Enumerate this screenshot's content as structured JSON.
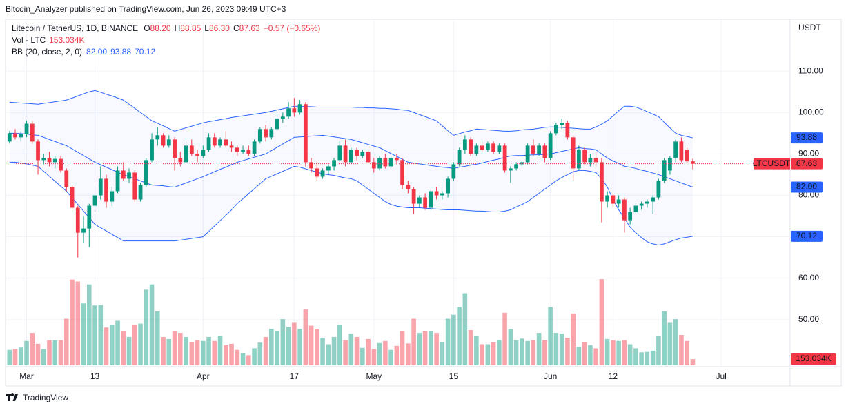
{
  "header": {
    "published": "Bitcoin_Analyzer published on TradingView.com, Jun 26, 2023 09:49 UTC+3",
    "brand": "TradingView"
  },
  "chart_data": {
    "type": "candlestick",
    "symbol": "Litecoin / TetherUS, 1D, BINANCE",
    "ohlc_legend": [
      {
        "key": "O",
        "value": "88.20"
      },
      {
        "key": "H",
        "value": "88.85"
      },
      {
        "key": "L",
        "value": "86.30"
      },
      {
        "key": "C",
        "value": "87.63"
      }
    ],
    "change": "−0.57 (−0.65%)",
    "volume_legend": {
      "name": "Vol · LTC",
      "value": "153.034K"
    },
    "bb_legend": {
      "name": "BB (20, close, 2, 0)",
      "values": [
        "82.00",
        "93.88",
        "70.12"
      ]
    },
    "currency": "USDT",
    "symbol_badge": "LTCUSDT",
    "last_labels": {
      "upper": "93.88",
      "close": "87.63",
      "middle": "82.00",
      "lower": "70.12",
      "volume": "153.034K"
    },
    "up_color": "#089981",
    "down_color": "#f23645",
    "band_color": "#2962ff",
    "xlim": [
      -0.7,
      137.1
    ],
    "xticks": [
      {
        "value": 3,
        "label": "Mar"
      },
      {
        "value": 15,
        "label": "13"
      },
      {
        "value": 34,
        "label": "Apr"
      },
      {
        "value": 50,
        "label": "17"
      },
      {
        "value": 64,
        "label": "May"
      },
      {
        "value": 78,
        "label": "15"
      },
      {
        "value": 95,
        "label": "Jun"
      },
      {
        "value": 106,
        "label": "12"
      },
      {
        "value": 125,
        "label": "Jul"
      }
    ],
    "ylim": [
      39,
      122.5
    ],
    "yticks": [
      {
        "value": 110,
        "label": "110.00"
      },
      {
        "value": 100,
        "label": "100.00"
      },
      {
        "value": 90,
        "label": "90.00"
      },
      {
        "value": 80,
        "label": "80.00"
      },
      {
        "value": 70,
        "label": "70.00"
      },
      {
        "value": 60,
        "label": "60.00"
      },
      {
        "value": 50,
        "label": "50.00"
      }
    ],
    "volume_ylim": [
      0,
      2200
    ],
    "candles": [
      [
        93,
        95.5,
        92.5,
        95
      ],
      [
        95,
        96,
        93.5,
        94
      ],
      [
        94,
        95.5,
        93,
        94.8
      ],
      [
        94.8,
        98,
        94,
        97.3
      ],
      [
        97.3,
        98,
        92.5,
        93
      ],
      [
        93,
        93.5,
        85,
        88.5
      ],
      [
        88.5,
        90,
        87.5,
        89
      ],
      [
        89,
        90.5,
        87,
        88
      ],
      [
        88,
        89.5,
        86.5,
        88.8
      ],
      [
        88.8,
        89.5,
        85.5,
        86
      ],
      [
        86,
        86.5,
        81,
        82
      ],
      [
        82,
        82.5,
        76,
        77
      ],
      [
        77,
        77.5,
        65,
        71
      ],
      [
        71,
        75,
        68.5,
        72
      ],
      [
        72,
        78,
        67.5,
        77.5
      ],
      [
        77.5,
        82,
        76,
        80
      ],
      [
        80,
        87,
        79,
        84
      ],
      [
        84,
        85,
        77,
        78.5
      ],
      [
        78.5,
        82,
        77.5,
        81
      ],
      [
        81,
        87,
        80.5,
        86
      ],
      [
        86,
        88,
        83.5,
        84
      ],
      [
        84,
        86.5,
        83,
        85.5
      ],
      [
        85.5,
        86,
        78.5,
        79
      ],
      [
        79,
        83,
        78.5,
        82.5
      ],
      [
        82.5,
        89,
        82,
        88.5
      ],
      [
        88.5,
        95,
        88,
        93.5
      ],
      [
        93.5,
        96.5,
        92,
        94.5
      ],
      [
        94.5,
        95,
        91.5,
        92
      ],
      [
        92,
        94.5,
        91.5,
        93.5
      ],
      [
        93.5,
        94,
        86,
        89
      ],
      [
        89,
        90.5,
        87,
        88
      ],
      [
        88,
        93,
        87.5,
        92
      ],
      [
        92,
        93.5,
        89.5,
        90
      ],
      [
        90,
        91,
        88,
        89.5
      ],
      [
        89.5,
        92,
        89,
        91
      ],
      [
        91,
        95,
        90.5,
        94
      ],
      [
        94,
        95,
        91.5,
        92
      ],
      [
        92,
        94,
        91.5,
        93.5
      ],
      [
        93.5,
        95.5,
        91.5,
        92
      ],
      [
        92,
        93,
        90.5,
        91.5
      ],
      [
        91.5,
        92,
        89.5,
        90.5
      ],
      [
        90.5,
        92,
        90,
        91
      ],
      [
        91,
        92,
        89.5,
        90
      ],
      [
        90,
        93.5,
        89.5,
        93
      ],
      [
        93,
        96.5,
        92.5,
        96
      ],
      [
        96,
        97,
        93,
        94
      ],
      [
        94,
        96.5,
        93.5,
        96
      ],
      [
        96,
        99.5,
        95.5,
        98.5
      ],
      [
        98.5,
        100,
        97.5,
        99
      ],
      [
        99,
        102.5,
        98.5,
        101
      ],
      [
        101,
        103.5,
        99,
        100
      ],
      [
        100,
        103,
        99.5,
        102
      ],
      [
        102,
        102.5,
        87,
        88
      ],
      [
        88,
        89,
        85.5,
        86.5
      ],
      [
        86.5,
        88,
        83.5,
        84.5
      ],
      [
        84.5,
        86.5,
        84,
        86
      ],
      [
        86,
        87.5,
        85,
        87
      ],
      [
        87,
        89,
        86,
        88.5
      ],
      [
        88.5,
        93,
        88,
        92
      ],
      [
        92,
        93.5,
        87,
        88
      ],
      [
        88,
        91.5,
        87.5,
        91
      ],
      [
        91,
        91.5,
        88.5,
        89.5
      ],
      [
        89.5,
        91,
        89,
        90.5
      ],
      [
        90.5,
        91,
        87.5,
        88
      ],
      [
        88,
        89,
        85.5,
        86.5
      ],
      [
        86.5,
        89.5,
        86,
        89
      ],
      [
        89,
        90,
        86.5,
        87
      ],
      [
        87,
        89.5,
        86.5,
        89
      ],
      [
        89,
        90,
        87.5,
        88.5
      ],
      [
        88.5,
        89,
        81.5,
        82.5
      ],
      [
        82.5,
        83.5,
        80.5,
        81.5
      ],
      [
        81.5,
        82,
        75.5,
        78
      ],
      [
        78,
        80,
        77,
        79.5
      ],
      [
        79.5,
        80.5,
        76.5,
        77
      ],
      [
        77,
        81.5,
        76.5,
        81
      ],
      [
        81,
        82,
        79,
        80
      ],
      [
        80,
        81,
        79,
        80.5
      ],
      [
        80.5,
        84.5,
        79.5,
        84
      ],
      [
        84,
        88,
        83.5,
        87.5
      ],
      [
        87.5,
        91.5,
        87,
        91
      ],
      [
        91,
        94.5,
        90,
        93.5
      ],
      [
        93.5,
        94,
        89.5,
        90
      ],
      [
        90,
        92.5,
        89.5,
        92
      ],
      [
        92,
        93,
        90.5,
        91
      ],
      [
        91,
        93,
        90.5,
        92.5
      ],
      [
        92.5,
        93,
        90,
        90.5
      ],
      [
        90.5,
        92.5,
        90,
        92
      ],
      [
        92,
        92.5,
        85.5,
        86
      ],
      [
        86,
        87,
        83,
        86.5
      ],
      [
        86.5,
        88,
        86,
        87.5
      ],
      [
        87.5,
        88.5,
        87,
        88
      ],
      [
        88,
        92.5,
        87.5,
        92
      ],
      [
        92,
        93.5,
        89.5,
        90
      ],
      [
        90,
        92.5,
        89.5,
        92
      ],
      [
        92,
        92.5,
        88,
        89
      ],
      [
        89,
        95.5,
        88.5,
        95
      ],
      [
        95,
        97.5,
        94.5,
        97
      ],
      [
        97,
        98.5,
        96,
        97.5
      ],
      [
        97.5,
        98,
        93.5,
        94
      ],
      [
        94,
        94.5,
        83.5,
        86.5
      ],
      [
        86.5,
        92,
        86,
        91
      ],
      [
        91,
        91.5,
        87.5,
        88
      ],
      [
        88,
        90,
        87,
        89
      ],
      [
        89,
        90.5,
        87,
        88
      ],
      [
        88,
        89,
        73.5,
        78.5
      ],
      [
        78.5,
        81,
        77,
        80
      ],
      [
        80,
        80.5,
        77,
        78
      ],
      [
        78,
        80,
        77,
        79
      ],
      [
        79,
        79.5,
        71,
        74
      ],
      [
        74,
        77,
        73,
        76
      ],
      [
        76,
        78,
        75.5,
        77.5
      ],
      [
        77.5,
        78.5,
        76.5,
        78
      ],
      [
        78,
        79,
        77,
        78.5
      ],
      [
        78.5,
        80,
        75.5,
        79.5
      ],
      [
        79.5,
        84,
        79,
        83.5
      ],
      [
        83.5,
        89,
        83,
        88.5
      ],
      [
        86,
        89.5,
        85,
        89
      ],
      [
        89,
        93.5,
        88,
        93
      ],
      [
        93,
        94,
        88,
        88.5
      ],
      [
        91,
        91.5,
        87.5,
        88.2
      ],
      [
        88.2,
        88.85,
        86.3,
        87.63
      ]
    ],
    "volume": [
      380,
      400,
      440,
      600,
      800,
      530,
      400,
      620,
      620,
      620,
      1150,
      2120,
      2070,
      1530,
      2000,
      1480,
      1490,
      935,
      1000,
      1100,
      850,
      700,
      1000,
      1030,
      1870,
      2000,
      1330,
      700,
      650,
      850,
      800,
      700,
      580,
      620,
      600,
      700,
      600,
      720,
      500,
      530,
      380,
      300,
      250,
      420,
      560,
      700,
      900,
      850,
      1140,
      950,
      1050,
      900,
      1380,
      980,
      900,
      680,
      520,
      700,
      1000,
      620,
      780,
      700,
      430,
      650,
      400,
      550,
      600,
      380,
      480,
      850,
      540,
      1150,
      800,
      850,
      850,
      800,
      580,
      1150,
      1250,
      1440,
      1780,
      870,
      720,
      520,
      520,
      570,
      630,
      1300,
      900,
      620,
      660,
      600,
      620,
      800,
      620,
      1440,
      800,
      780,
      680,
      1280,
      460,
      580,
      500,
      420,
      2130,
      650,
      620,
      600,
      620,
      520,
      420,
      320,
      330,
      360,
      720,
      1330,
      1050,
      1140,
      750,
      600,
      153.034
    ],
    "bb": {
      "upper": [
        102.5,
        102.4,
        102.3,
        102.2,
        102.1,
        102.0,
        102.2,
        102.4,
        102.6,
        102.8,
        103.0,
        103.5,
        104.0,
        104.5,
        105.0,
        105.3,
        104.9,
        104.4,
        104.0,
        103.5,
        103.0,
        102.0,
        101.0,
        100.0,
        99.0,
        98.0,
        97.4,
        96.8,
        96.1,
        95.5,
        95.9,
        96.3,
        96.7,
        97.1,
        97.5,
        97.8,
        98.0,
        98.3,
        98.5,
        98.8,
        99.0,
        99.2,
        99.4,
        99.6,
        99.8,
        100.0,
        100.3,
        100.6,
        100.9,
        101.2,
        101.5,
        101.5,
        101.4,
        101.4,
        101.3,
        101.3,
        101.3,
        101.3,
        101.3,
        101.3,
        101.3,
        101.2,
        101.2,
        101.1,
        101.1,
        101.0,
        101.0,
        100.9,
        100.8,
        100.6,
        100.5,
        100.0,
        99.5,
        99.0,
        98.5,
        98.0,
        96.8,
        95.6,
        94.5,
        94.9,
        95.3,
        95.6,
        96.0,
        95.9,
        95.8,
        95.7,
        95.6,
        95.5,
        95.5,
        95.6,
        95.8,
        95.9,
        96.0,
        96.2,
        96.4,
        96.5,
        96.5,
        96.4,
        96.3,
        96.2,
        96.1,
        96.0,
        96.0,
        96.5,
        97.2,
        98.0,
        99.2,
        100.4,
        101.5,
        101.5,
        101.3,
        100.8,
        100.2,
        99.6,
        99.0,
        97.6,
        96.3,
        95.0,
        94.5,
        94.2,
        93.88
      ],
      "middle": [
        95.0,
        95.0,
        94.9,
        94.8,
        94.6,
        94.5,
        94.0,
        93.5,
        93.0,
        92.5,
        92.0,
        91.2,
        90.4,
        89.6,
        88.8,
        88.0,
        87.4,
        86.8,
        86.2,
        85.6,
        85.0,
        84.5,
        84.0,
        83.5,
        83.0,
        82.5,
        82.4,
        82.3,
        82.1,
        82.0,
        82.5,
        83.0,
        83.5,
        84.0,
        84.5,
        85.1,
        85.7,
        86.3,
        86.8,
        87.4,
        88.0,
        88.4,
        88.8,
        89.2,
        89.6,
        90.0,
        90.8,
        91.6,
        92.4,
        93.2,
        94.0,
        94.1,
        94.2,
        94.3,
        94.4,
        94.5,
        94.3,
        94.1,
        93.9,
        93.7,
        93.5,
        93.1,
        92.7,
        92.3,
        91.9,
        91.5,
        90.8,
        90.1,
        89.4,
        88.7,
        88.0,
        87.8,
        87.6,
        87.4,
        87.2,
        87.0,
        86.8,
        86.7,
        86.5,
        86.8,
        87.0,
        87.3,
        87.5,
        87.8,
        88.2,
        88.5,
        88.8,
        89.2,
        89.5,
        89.6,
        89.6,
        89.7,
        89.8,
        89.8,
        89.9,
        90.0,
        90.3,
        90.6,
        90.9,
        91.2,
        91.5,
        91.3,
        91.2,
        91.0,
        90.0,
        89.0,
        88.3,
        87.7,
        87.0,
        86.8,
        86.5,
        86.1,
        85.8,
        85.4,
        85.0,
        84.5,
        84.0,
        83.5,
        83.0,
        82.5,
        82.0
      ],
      "lower": [
        88.0,
        88.0,
        87.8,
        87.6,
        87.3,
        87.0,
        85.8,
        84.6,
        83.4,
        82.2,
        81.0,
        79.4,
        77.8,
        76.2,
        74.6,
        73.0,
        72.2,
        71.4,
        70.6,
        69.8,
        69.0,
        69.0,
        69.0,
        69.0,
        69.0,
        69.0,
        69.0,
        69.0,
        69.0,
        69.0,
        69.2,
        69.4,
        69.6,
        69.8,
        70.0,
        71.3,
        72.6,
        73.9,
        75.2,
        76.5,
        78.0,
        79.2,
        80.4,
        81.6,
        82.8,
        84.0,
        84.6,
        85.2,
        85.8,
        86.4,
        87.0,
        86.8,
        86.4,
        86.0,
        85.6,
        85.2,
        85.0,
        84.8,
        84.5,
        84.2,
        84.0,
        83.5,
        82.5,
        81.5,
        80.5,
        79.5,
        78.5,
        77.8,
        77.4,
        77.2,
        77.0,
        77.0,
        77.0,
        76.9,
        76.8,
        76.7,
        76.6,
        76.5,
        76.5,
        76.5,
        76.4,
        76.3,
        76.2,
        76.2,
        76.1,
        76.0,
        76.0,
        76.2,
        76.5,
        77.2,
        77.8,
        78.5,
        79.5,
        80.5,
        81.5,
        82.5,
        83.5,
        84.3,
        85.0,
        85.7,
        86.0,
        86.0,
        85.8,
        85.5,
        84.0,
        82.0,
        79.0,
        76.5,
        74.5,
        72.3,
        71.0,
        69.8,
        68.8,
        68.3,
        68.0,
        68.3,
        68.8,
        69.3,
        69.7,
        69.9,
        70.12
      ]
    }
  }
}
